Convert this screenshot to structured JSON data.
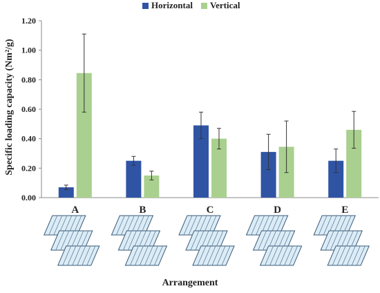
{
  "chart_data": {
    "type": "bar",
    "title": "",
    "xlabel": "Arrangement",
    "ylabel": "Specific loading capacity (Nm²/g)",
    "ylim": [
      0,
      1.2
    ],
    "yticks": [
      "0.00",
      "0.20",
      "0.40",
      "0.60",
      "0.80",
      "1.00",
      "1.20"
    ],
    "categories": [
      "A",
      "B",
      "C",
      "D",
      "E"
    ],
    "legend_position": "top-center",
    "grid": false,
    "series": [
      {
        "name": "Horizontal",
        "color": "#2f54a4",
        "values": [
          0.07,
          0.25,
          0.49,
          0.31,
          0.25
        ],
        "errors": [
          0.015,
          0.03,
          0.09,
          0.12,
          0.08
        ]
      },
      {
        "name": "Vertical",
        "color": "#a9d08e",
        "values": [
          0.845,
          0.15,
          0.4,
          0.345,
          0.46
        ],
        "errors": [
          0.265,
          0.03,
          0.07,
          0.175,
          0.125
        ]
      }
    ],
    "illustration_icons": [
      "stacked-layers-icon",
      "stacked-layers-icon",
      "stacked-layers-icon",
      "stacked-layers-icon",
      "stacked-layers-icon"
    ]
  }
}
